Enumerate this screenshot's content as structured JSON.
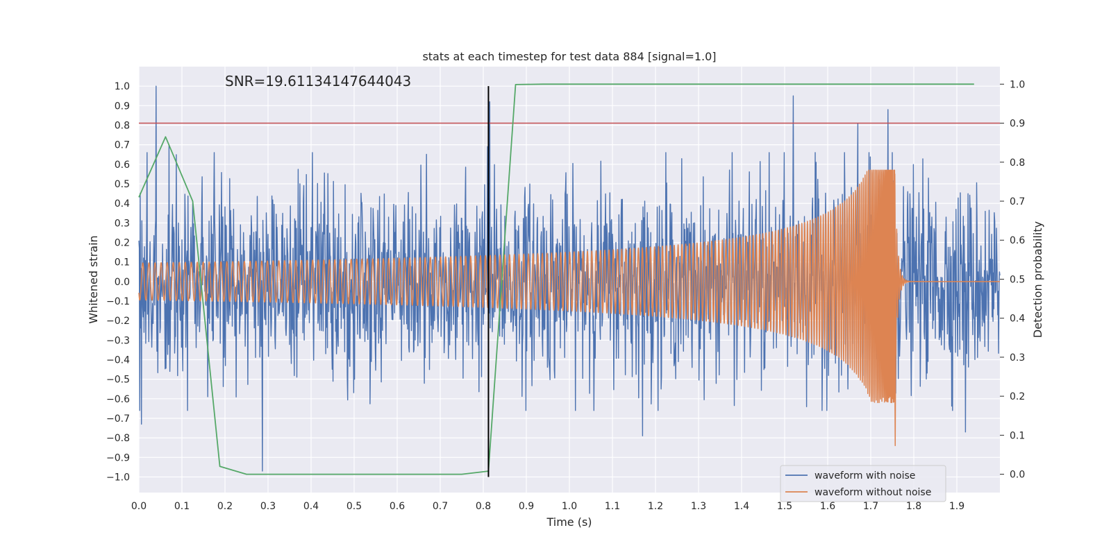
{
  "chart_data": {
    "type": "line",
    "title": "stats at each timestep for test data 884 [signal=1.0]",
    "xlabel": "Time (s)",
    "ylabel": "Whitened strain",
    "y2label": "Detection probability",
    "xlim": [
      0.0,
      2.0
    ],
    "ylim": [
      -1.08,
      1.1
    ],
    "y2lim": [
      -0.047,
      1.045
    ],
    "xticks": [
      0.0,
      0.1,
      0.2,
      0.3,
      0.4,
      0.5,
      0.6,
      0.7,
      0.8,
      0.9,
      1.0,
      1.1,
      1.2,
      1.3,
      1.4,
      1.5,
      1.6,
      1.7,
      1.8,
      1.9
    ],
    "yticks": [
      -1.0,
      -0.9,
      -0.8,
      -0.7,
      -0.6,
      -0.5,
      -0.4,
      -0.3,
      -0.2,
      -0.1,
      0.0,
      0.1,
      0.2,
      0.3,
      0.4,
      0.5,
      0.6,
      0.7,
      0.8,
      0.9,
      1.0
    ],
    "y2ticks": [
      0.0,
      0.1,
      0.2,
      0.3,
      0.4,
      0.5,
      0.6,
      0.7,
      0.8,
      0.9,
      1.0
    ],
    "grid": true,
    "annotation": "SNR=19.61134147644043",
    "annotation_at": {
      "x": 0.2,
      "y": 1.0
    },
    "threshold": {
      "y2": 0.9,
      "color": "#c44e52"
    },
    "marker_line": {
      "x": 0.812,
      "y_from": -1.0,
      "y_to": 1.0,
      "color": "#000000"
    },
    "series": [
      {
        "name": "waveform with noise",
        "axis": "left",
        "color": "#4c72b0",
        "style": "noise",
        "spikes": [
          {
            "x": 0.002,
            "y": -0.66
          },
          {
            "x": 0.006,
            "y": -0.73
          },
          {
            "x": 0.04,
            "y": 1.0
          },
          {
            "x": 0.07,
            "y": 0.7
          },
          {
            "x": 0.287,
            "y": -0.97
          },
          {
            "x": 0.81,
            "y": 0.69
          },
          {
            "x": 0.815,
            "y": 0.92
          },
          {
            "x": 1.17,
            "y": -0.79
          },
          {
            "x": 1.52,
            "y": 0.95
          },
          {
            "x": 1.67,
            "y": 0.81
          },
          {
            "x": 1.74,
            "y": 0.88
          },
          {
            "x": 1.92,
            "y": -0.77
          }
        ]
      },
      {
        "name": "waveform without noise",
        "axis": "left",
        "color": "#dd8452",
        "style": "chirp",
        "merger_time": 1.756,
        "min_value": -0.84,
        "max_value": 0.57
      },
      {
        "name": "detection probability",
        "axis": "right",
        "color": "#55a868",
        "x": [
          0.0,
          0.062,
          0.125,
          0.188,
          0.25,
          0.312,
          0.375,
          0.438,
          0.5,
          0.562,
          0.625,
          0.688,
          0.75,
          0.812,
          0.875,
          0.938,
          1.0,
          1.5,
          1.94
        ],
        "y": [
          0.71,
          0.865,
          0.7,
          0.02,
          0.0,
          0.0,
          0.0,
          0.0,
          0.0,
          0.0,
          0.0,
          0.0,
          0.0,
          0.008,
          0.999,
          1.0,
          1.0,
          1.0,
          1.0
        ]
      }
    ],
    "legend": {
      "position": "lower-right",
      "entries": [
        {
          "label": "waveform with noise",
          "color": "#4c72b0"
        },
        {
          "label": "waveform without noise",
          "color": "#dd8452"
        }
      ]
    }
  }
}
